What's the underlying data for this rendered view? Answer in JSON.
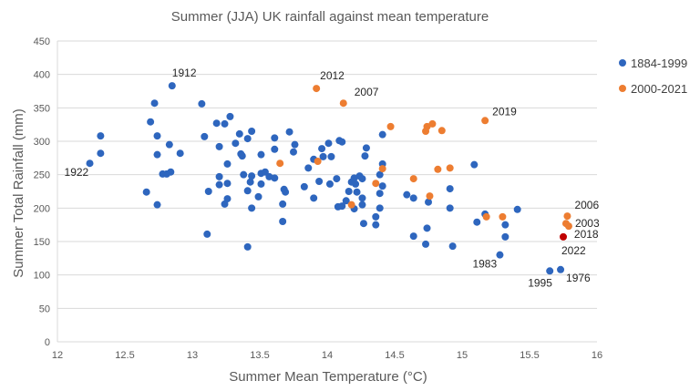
{
  "chart_data": {
    "type": "scatter",
    "title": "Summer (JJA) UK rainfall against mean temperature",
    "xlabel": "Summer Mean Temperature (°C)",
    "ylabel": "Summer Total Rainfall (mm)",
    "xlim": [
      12,
      16
    ],
    "ylim": [
      0,
      450
    ],
    "xticks": [
      "12",
      "12.5",
      "13",
      "13.5",
      "14",
      "14.5",
      "15",
      "15.5",
      "16"
    ],
    "yticks": [
      "0",
      "50",
      "100",
      "150",
      "200",
      "250",
      "300",
      "350",
      "400",
      "450"
    ],
    "grid": "horizontal",
    "legend": "right",
    "series": [
      {
        "name": "1884-1999",
        "color": "#2e66be",
        "points": [
          [
            12.32,
            308
          ],
          [
            12.32,
            282
          ],
          [
            12.24,
            267
          ],
          [
            12.85,
            383
          ],
          [
            12.72,
            357
          ],
          [
            12.69,
            329
          ],
          [
            12.74,
            308
          ],
          [
            12.83,
            295
          ],
          [
            12.74,
            280
          ],
          [
            12.91,
            282
          ],
          [
            12.78,
            251
          ],
          [
            12.81,
            251
          ],
          [
            12.84,
            254
          ],
          [
            12.66,
            224
          ],
          [
            12.74,
            205
          ],
          [
            13.07,
            356
          ],
          [
            13.09,
            307
          ],
          [
            13.18,
            327
          ],
          [
            13.24,
            326
          ],
          [
            13.28,
            337
          ],
          [
            13.2,
            292
          ],
          [
            13.35,
            311
          ],
          [
            13.32,
            297
          ],
          [
            13.41,
            304
          ],
          [
            13.44,
            315
          ],
          [
            13.36,
            281
          ],
          [
            13.37,
            278
          ],
          [
            13.26,
            266
          ],
          [
            13.51,
            280
          ],
          [
            13.2,
            247
          ],
          [
            13.2,
            235
          ],
          [
            13.26,
            237
          ],
          [
            13.12,
            225
          ],
          [
            13.26,
            214
          ],
          [
            13.24,
            206
          ],
          [
            13.38,
            250
          ],
          [
            13.44,
            248
          ],
          [
            13.43,
            239
          ],
          [
            13.41,
            226
          ],
          [
            13.51,
            252
          ],
          [
            13.54,
            254
          ],
          [
            13.57,
            247
          ],
          [
            13.51,
            236
          ],
          [
            13.49,
            217
          ],
          [
            13.44,
            200
          ],
          [
            13.11,
            161
          ],
          [
            13.41,
            142
          ],
          [
            13.61,
            245
          ],
          [
            13.61,
            305
          ],
          [
            13.61,
            288
          ],
          [
            13.72,
            314
          ],
          [
            13.76,
            295
          ],
          [
            13.75,
            284
          ],
          [
            13.68,
            228
          ],
          [
            13.69,
            224
          ],
          [
            13.67,
            206
          ],
          [
            13.67,
            180
          ],
          [
            13.83,
            232
          ],
          [
            13.86,
            260
          ],
          [
            13.9,
            273
          ],
          [
            13.96,
            289
          ],
          [
            14.01,
            297
          ],
          [
            13.97,
            277
          ],
          [
            14.03,
            277
          ],
          [
            13.94,
            240
          ],
          [
            14.02,
            236
          ],
          [
            14.07,
            244
          ],
          [
            13.9,
            215
          ],
          [
            14.09,
            301
          ],
          [
            14.11,
            299
          ],
          [
            14.08,
            202
          ],
          [
            14.11,
            203
          ],
          [
            14.14,
            211
          ],
          [
            14.2,
            199
          ],
          [
            14.16,
            225
          ],
          [
            14.22,
            224
          ],
          [
            14.26,
            215
          ],
          [
            14.26,
            205
          ],
          [
            14.18,
            239
          ],
          [
            14.21,
            236
          ],
          [
            14.2,
            245
          ],
          [
            14.24,
            248
          ],
          [
            14.26,
            244
          ],
          [
            14.29,
            290
          ],
          [
            14.28,
            278
          ],
          [
            14.27,
            177
          ],
          [
            14.36,
            187
          ],
          [
            14.36,
            175
          ],
          [
            14.39,
            200
          ],
          [
            14.39,
            222
          ],
          [
            14.41,
            233
          ],
          [
            14.39,
            250
          ],
          [
            14.41,
            266
          ],
          [
            14.41,
            310
          ],
          [
            14.59,
            220
          ],
          [
            14.64,
            215
          ],
          [
            14.75,
            209
          ],
          [
            14.64,
            158
          ],
          [
            14.74,
            170
          ],
          [
            14.73,
            146
          ],
          [
            15.09,
            265
          ],
          [
            14.91,
            229
          ],
          [
            14.91,
            200
          ],
          [
            15.17,
            191
          ],
          [
            15.11,
            179
          ],
          [
            15.32,
            175
          ],
          [
            15.32,
            157
          ],
          [
            15.41,
            198
          ],
          [
            14.93,
            143
          ],
          [
            15.28,
            130
          ],
          [
            15.65,
            106
          ],
          [
            15.73,
            108
          ]
        ]
      },
      {
        "name": "2000-2021",
        "color": "#ed7d31",
        "points": [
          [
            13.92,
            379
          ],
          [
            14.12,
            357
          ],
          [
            13.65,
            267
          ],
          [
            13.93,
            270
          ],
          [
            14.18,
            205
          ],
          [
            14.36,
            237
          ],
          [
            14.41,
            259
          ],
          [
            14.47,
            322
          ],
          [
            14.73,
            315
          ],
          [
            14.74,
            322
          ],
          [
            14.78,
            326
          ],
          [
            14.85,
            316
          ],
          [
            14.64,
            244
          ],
          [
            14.82,
            258
          ],
          [
            14.76,
            218
          ],
          [
            15.17,
            331
          ],
          [
            14.91,
            260
          ],
          [
            15.18,
            187
          ],
          [
            15.3,
            187
          ],
          [
            15.78,
            188
          ],
          [
            15.77,
            177
          ],
          [
            15.79,
            173
          ]
        ]
      },
      {
        "color": "#c00000",
        "points": [
          [
            15.75,
            157
          ]
        ]
      }
    ],
    "annotations": [
      {
        "text": "1922",
        "x": 12.24,
        "y": 267
      },
      {
        "text": "1912",
        "x": 12.85,
        "y": 383
      },
      {
        "text": "2012",
        "x": 13.92,
        "y": 379
      },
      {
        "text": "2007",
        "x": 14.12,
        "y": 357
      },
      {
        "text": "2019",
        "x": 15.17,
        "y": 331
      },
      {
        "text": "2006",
        "x": 15.78,
        "y": 188
      },
      {
        "text": "2003",
        "x": 15.77,
        "y": 177
      },
      {
        "text": "2018",
        "x": 15.79,
        "y": 173
      },
      {
        "text": "2022",
        "x": 15.75,
        "y": 157
      },
      {
        "text": "1983",
        "x": 15.28,
        "y": 130
      },
      {
        "text": "1995",
        "x": 15.65,
        "y": 106
      },
      {
        "text": "1976",
        "x": 15.73,
        "y": 108
      }
    ]
  }
}
